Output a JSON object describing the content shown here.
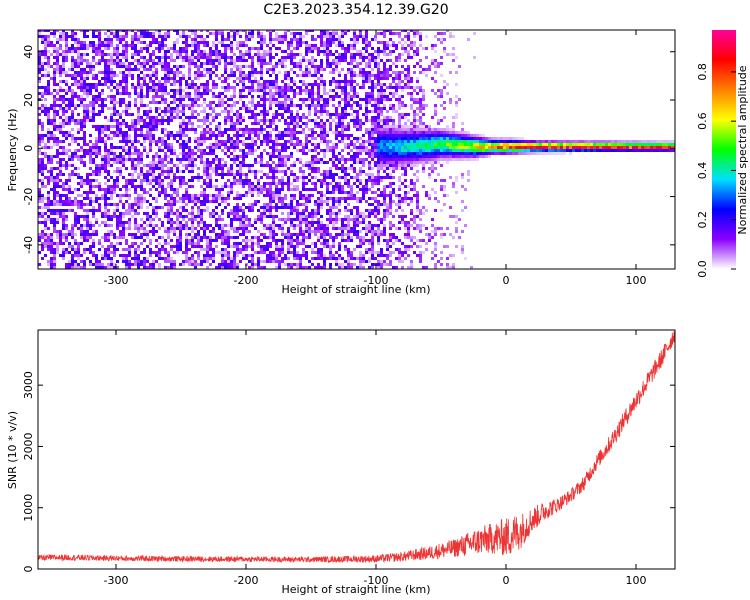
{
  "chart_data": [
    {
      "type": "heatmap",
      "title": "C2E3.2023.354.12.39.G20",
      "xlabel": "Height of straight line (km)",
      "ylabel": "Frequency (Hz)",
      "xlim": [
        -360,
        130
      ],
      "ylim": [
        -50,
        49
      ],
      "xticks": [
        -300,
        -200,
        -100,
        0,
        100
      ],
      "yticks": [
        -40,
        -20,
        0,
        20,
        40
      ],
      "colorbar": {
        "label": "Normalized spectral amplitude",
        "range": [
          0,
          0.97
        ],
        "ticks": [
          0.0,
          0.2,
          0.4,
          0.6,
          0.8
        ],
        "colormap": [
          "#ffffff",
          "#8a00ff",
          "#0000ff",
          "#00e0ff",
          "#00ff00",
          "#ffff00",
          "#ff7f00",
          "#ff0000",
          "#ff0099"
        ]
      },
      "signal": {
        "onset_height_km": -100,
        "noise_floor_height_km": -25,
        "noise_amplitude": 0.2,
        "profile": [
          {
            "height": -100,
            "freq_center": 0,
            "freq_halfwidth": 6,
            "peak": 0.35
          },
          {
            "height": -75,
            "freq_center": 0,
            "freq_halfwidth": 5,
            "peak": 0.45
          },
          {
            "height": -50,
            "freq_center": 1,
            "freq_halfwidth": 4,
            "peak": 0.55
          },
          {
            "height": -25,
            "freq_center": 0,
            "freq_halfwidth": 3,
            "peak": 0.7
          },
          {
            "height": -10,
            "freq_center": 0,
            "freq_halfwidth": 2,
            "peak": 0.85
          },
          {
            "height": 0,
            "freq_center": 0,
            "freq_halfwidth": 2,
            "peak": 0.9
          },
          {
            "height": 25,
            "freq_center": 0,
            "freq_halfwidth": 1.5,
            "peak": 0.95
          },
          {
            "height": 130,
            "freq_center": 0,
            "freq_halfwidth": 1.2,
            "peak": 0.97
          }
        ]
      }
    },
    {
      "type": "line",
      "xlabel": "Height of straight line (km)",
      "ylabel": "SNR (10 * v/v)",
      "xlim": [
        -360,
        130
      ],
      "ylim": [
        0,
        3900
      ],
      "xticks": [
        -300,
        -200,
        -100,
        0,
        100
      ],
      "yticks": [
        0,
        1000,
        2000,
        3000
      ],
      "color": "#ee3333",
      "series": [
        {
          "x": [
            -360,
            -340,
            -300,
            -250,
            -200,
            -150,
            -100,
            -80,
            -60,
            -40,
            -30,
            -20,
            -10,
            0,
            5,
            10,
            15,
            20,
            30,
            40,
            50,
            60,
            70,
            80,
            90,
            100,
            110,
            120,
            130
          ],
          "y": [
            180,
            190,
            175,
            165,
            160,
            155,
            165,
            200,
            260,
            340,
            400,
            460,
            500,
            520,
            560,
            600,
            700,
            800,
            950,
            1050,
            1200,
            1400,
            1750,
            2050,
            2400,
            2750,
            3100,
            3450,
            3850
          ],
          "noise": [
            50,
            50,
            45,
            45,
            45,
            45,
            60,
            80,
            110,
            150,
            190,
            230,
            260,
            320,
            350,
            300,
            260,
            210,
            160,
            120,
            110,
            120,
            130,
            140,
            150,
            150,
            150,
            150,
            150
          ]
        }
      ]
    }
  ]
}
